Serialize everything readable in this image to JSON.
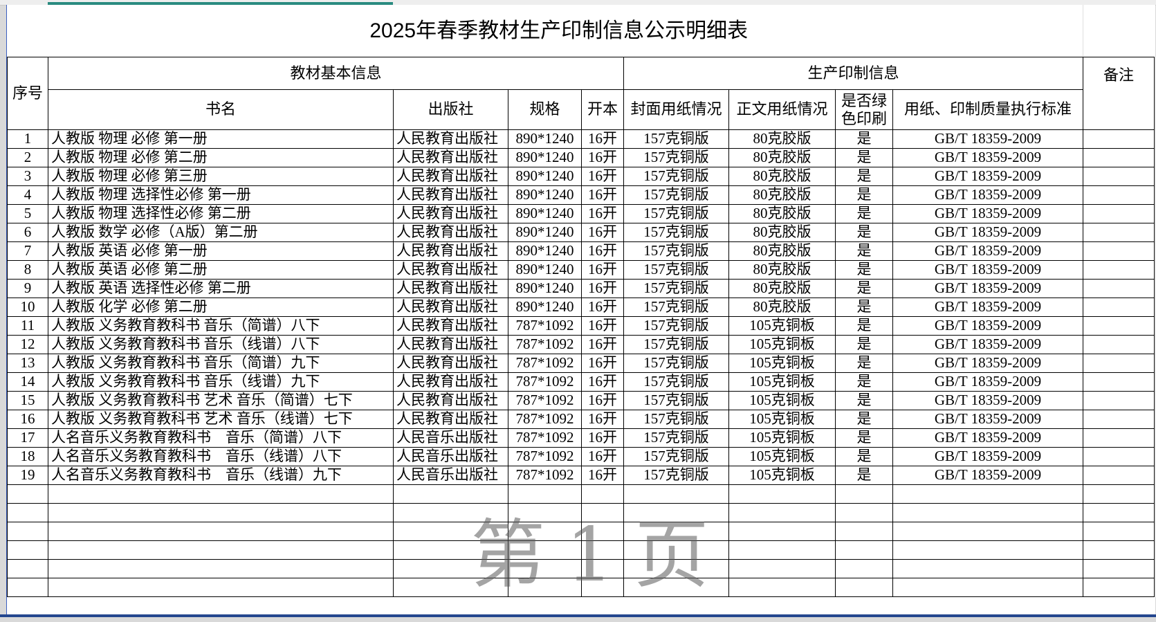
{
  "title": "2025年春季教材生产印制信息公示明细表",
  "headers": {
    "seq": "序号",
    "group_basic": "教材基本信息",
    "group_production": "生产印制信息",
    "remark": "备注",
    "book_name": "书名",
    "publisher": "出版社",
    "spec": "规格",
    "format": "开本",
    "cover_paper": "封面用纸情况",
    "text_paper": "正文用纸情况",
    "green_print": "是否绿色印刷",
    "standard": "用纸、印制质量执行标准"
  },
  "rows": [
    [
      "1",
      "人教版 物理 必修 第一册",
      "人民教育出版社",
      "890*1240",
      "16开",
      "157克铜版",
      "80克胶版",
      "是",
      "GB/T 18359-2009",
      ""
    ],
    [
      "2",
      "人教版 物理 必修 第二册",
      "人民教育出版社",
      "890*1240",
      "16开",
      "157克铜版",
      "80克胶版",
      "是",
      "GB/T 18359-2009",
      ""
    ],
    [
      "3",
      "人教版 物理 必修 第三册",
      "人民教育出版社",
      "890*1240",
      "16开",
      "157克铜版",
      "80克胶版",
      "是",
      "GB/T 18359-2009",
      ""
    ],
    [
      "4",
      "人教版 物理 选择性必修 第一册",
      "人民教育出版社",
      "890*1240",
      "16开",
      "157克铜版",
      "80克胶版",
      "是",
      "GB/T 18359-2009",
      ""
    ],
    [
      "5",
      "人教版 物理 选择性必修 第二册",
      "人民教育出版社",
      "890*1240",
      "16开",
      "157克铜版",
      "80克胶版",
      "是",
      "GB/T 18359-2009",
      ""
    ],
    [
      "6",
      "人教版 数学 必修（A版）第二册",
      "人民教育出版社",
      "890*1240",
      "16开",
      "157克铜版",
      "80克胶版",
      "是",
      "GB/T 18359-2009",
      ""
    ],
    [
      "7",
      "人教版 英语 必修 第一册",
      "人民教育出版社",
      "890*1240",
      "16开",
      "157克铜版",
      "80克胶版",
      "是",
      "GB/T 18359-2009",
      ""
    ],
    [
      "8",
      "人教版 英语 必修 第二册",
      "人民教育出版社",
      "890*1240",
      "16开",
      "157克铜版",
      "80克胶版",
      "是",
      "GB/T 18359-2009",
      ""
    ],
    [
      "9",
      "人教版 英语 选择性必修 第二册",
      "人民教育出版社",
      "890*1240",
      "16开",
      "157克铜版",
      "80克胶版",
      "是",
      "GB/T 18359-2009",
      ""
    ],
    [
      "10",
      "人教版 化学 必修 第二册",
      "人民教育出版社",
      "890*1240",
      "16开",
      "157克铜版",
      "80克胶版",
      "是",
      "GB/T 18359-2009",
      ""
    ],
    [
      "11",
      "人教版 义务教育教科书 音乐（简谱）八下",
      "人民教育出版社",
      "787*1092",
      "16开",
      "157克铜版",
      "105克铜板",
      "是",
      "GB/T 18359-2009",
      ""
    ],
    [
      "12",
      "人教版 义务教育教科书 音乐（线谱）八下",
      "人民教育出版社",
      "787*1092",
      "16开",
      "157克铜版",
      "105克铜板",
      "是",
      "GB/T 18359-2009",
      ""
    ],
    [
      "13",
      "人教版 义务教育教科书 音乐（简谱）九下",
      "人民教育出版社",
      "787*1092",
      "16开",
      "157克铜版",
      "105克铜板",
      "是",
      "GB/T 18359-2009",
      ""
    ],
    [
      "14",
      "人教版 义务教育教科书 音乐（线谱）九下",
      "人民教育出版社",
      "787*1092",
      "16开",
      "157克铜版",
      "105克铜板",
      "是",
      "GB/T 18359-2009",
      ""
    ],
    [
      "15",
      "人教版 义务教育教科书 艺术 音乐（简谱）七下",
      "人民教育出版社",
      "787*1092",
      "16开",
      "157克铜版",
      "105克铜板",
      "是",
      "GB/T 18359-2009",
      ""
    ],
    [
      "16",
      "人教版 义务教育教科书 艺术 音乐（线谱）七下",
      "人民教育出版社",
      "787*1092",
      "16开",
      "157克铜版",
      "105克铜板",
      "是",
      "GB/T 18359-2009",
      ""
    ],
    [
      "17",
      "人名音乐义务教育教科书　音乐（简谱）八下",
      "人民音乐出版社",
      "787*1092",
      "16开",
      "157克铜版",
      "105克铜板",
      "是",
      "GB/T 18359-2009",
      ""
    ],
    [
      "18",
      "人名音乐义务教育教科书　音乐（线谱）八下",
      "人民音乐出版社",
      "787*1092",
      "16开",
      "157克铜版",
      "105克铜板",
      "是",
      "GB/T 18359-2009",
      ""
    ],
    [
      "19",
      "人名音乐义务教育教科书　音乐（线谱）九下",
      "人民音乐出版社",
      "787*1092",
      "16开",
      "157克铜版",
      "105克铜板",
      "是",
      "GB/T 18359-2009",
      ""
    ]
  ],
  "watermark": "第1页",
  "colors": {
    "selection": "#2a8b80",
    "sheet_border": "#24478f"
  }
}
